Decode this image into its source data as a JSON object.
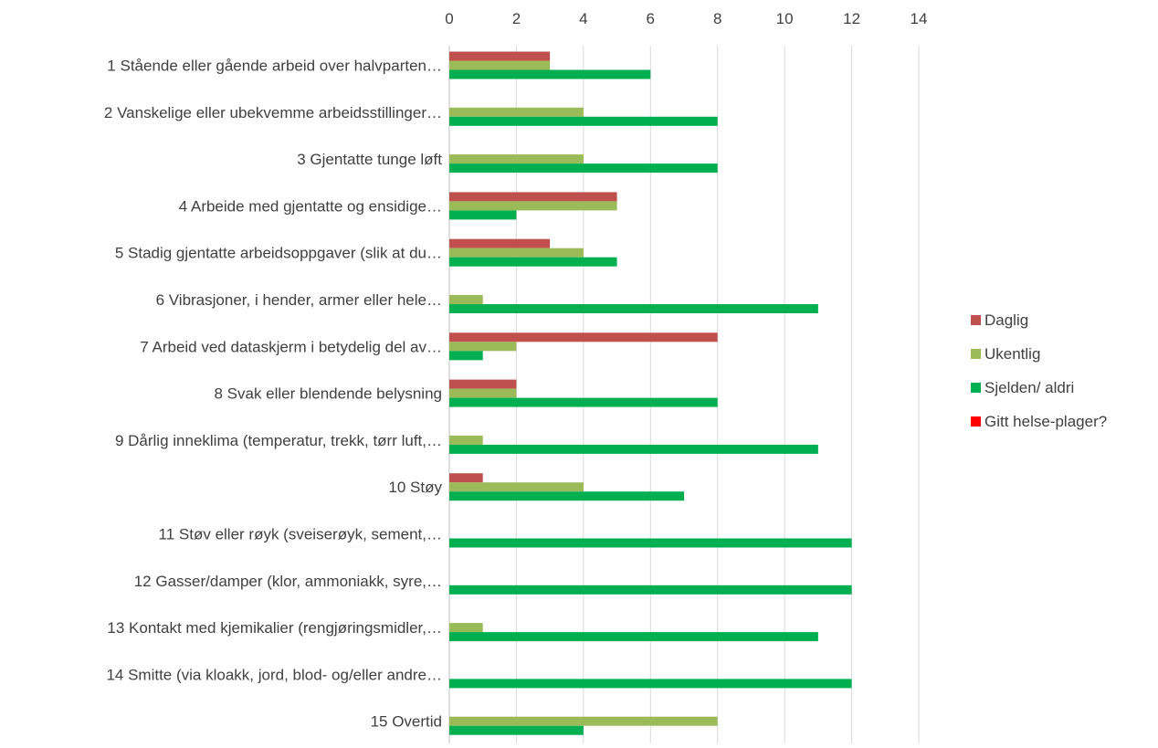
{
  "chart_data": {
    "type": "bar",
    "orientation": "horizontal",
    "title": "",
    "xlabel": "",
    "ylabel": "",
    "xlim": [
      0,
      14
    ],
    "x_ticks": [
      0,
      2,
      4,
      6,
      8,
      10,
      12,
      14
    ],
    "x_axis_position": "top",
    "grid": true,
    "legend_position": "right",
    "categories": [
      "1 Stående eller gående arbeid over halvparten…",
      "2 Vanskelige eller ubekvemme arbeidsstillinger…",
      "3 Gjentatte tunge løft",
      "4 Arbeide med gjentatte og ensidige…",
      "5 Stadig gjentatte arbeidsoppgaver (slik at du…",
      "6 Vibrasjoner, i hender, armer eller hele…",
      "7 Arbeid ved dataskjerm i betydelig del av…",
      "8 Svak eller blendende belysning",
      "9 Dårlig inneklima (temperatur, trekk, tørr luft,…",
      "10 Støy",
      "11 Støv eller røyk (sveiserøyk, sement,…",
      "12 Gasser/damper (klor, ammoniakk, syre,…",
      "13 Kontakt med kjemikalier (rengjøringsmidler,…",
      "14 Smitte (via kloakk, jord, blod- og/eller andre…",
      "15 Overtid"
    ],
    "series": [
      {
        "name": "Daglig",
        "color": "#C0504D",
        "values": [
          3,
          0,
          0,
          5,
          3,
          0,
          8,
          2,
          0,
          1,
          0,
          0,
          0,
          0,
          0
        ]
      },
      {
        "name": "Ukentlig",
        "color": "#9BBB59",
        "values": [
          3,
          4,
          4,
          5,
          4,
          1,
          2,
          2,
          1,
          4,
          0,
          0,
          1,
          0,
          8
        ]
      },
      {
        "name": "Sjelden/ aldri",
        "color": "#00B050",
        "values": [
          6,
          8,
          8,
          2,
          5,
          11,
          1,
          8,
          11,
          7,
          12,
          12,
          11,
          12,
          4
        ]
      },
      {
        "name": "Gitt helse-plager?",
        "color": "#FF0000",
        "values": [
          0,
          0,
          0,
          0,
          0,
          0,
          0,
          0,
          0,
          0,
          0,
          0,
          0,
          0,
          0
        ]
      }
    ]
  }
}
